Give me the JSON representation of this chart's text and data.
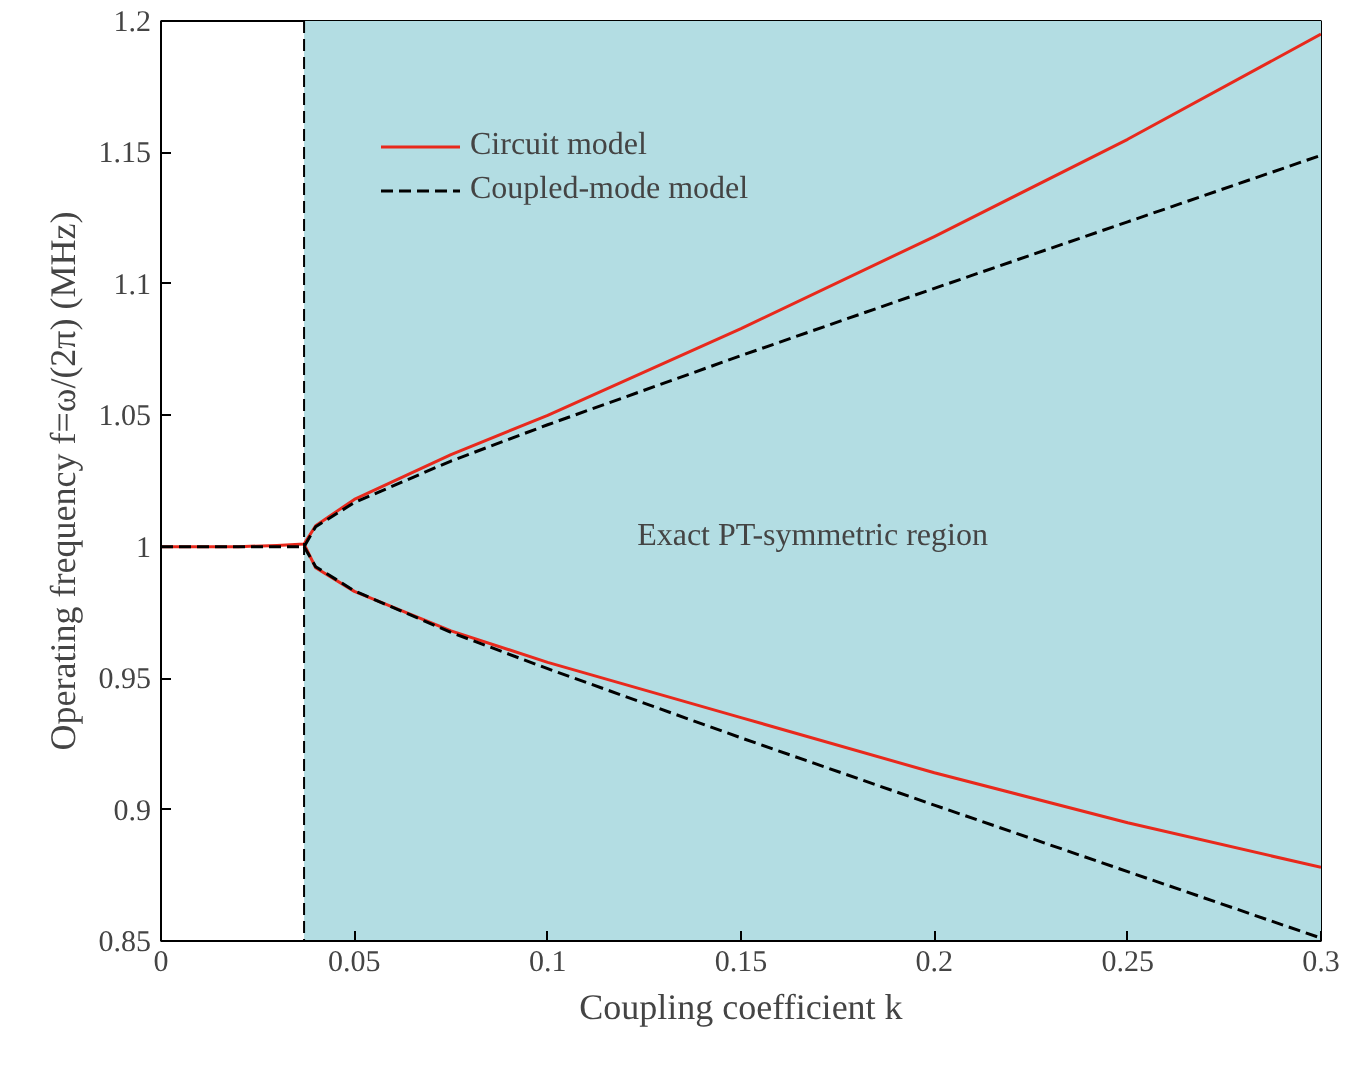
{
  "chart_data": {
    "type": "line",
    "xlabel": "Coupling coefficient k",
    "ylabel": "Operating frequency f=ω/(2π) (MHz)",
    "xlim": [
      0,
      0.3
    ],
    "ylim": [
      0.85,
      1.2
    ],
    "xticks": [
      0,
      0.05,
      0.1,
      0.15,
      0.2,
      0.25,
      0.3
    ],
    "yticks": [
      0.85,
      0.9,
      0.95,
      1,
      1.05,
      1.1,
      1.15,
      1.2
    ],
    "grid": false,
    "legend": "top left",
    "bands": [
      {
        "axis": "x",
        "from": 0.037,
        "to": 0.3,
        "label": "Exact PT-symmetric region",
        "color": "#b3dde3"
      }
    ],
    "ref_lines": [
      {
        "axis": "x",
        "value": 0.037,
        "color": "#000000",
        "line_style": "dashed"
      }
    ],
    "series": [
      {
        "name": "Circuit model",
        "color": "#e8291c",
        "line_style": "solid",
        "x": [
          0,
          0.01,
          0.02,
          0.03,
          0.037,
          0.04,
          0.05,
          0.075,
          0.1,
          0.15,
          0.2,
          0.25,
          0.3
        ],
        "values": [
          1,
          1,
          1,
          1.0005,
          1.001,
          1.008,
          1.018,
          1.035,
          1.05,
          1.083,
          1.118,
          1.155,
          1.195
        ]
      },
      {
        "color": "#e8291c",
        "line_style": "solid",
        "x": [
          0.037,
          0.04,
          0.05,
          0.075,
          0.1,
          0.15,
          0.2,
          0.25,
          0.3
        ],
        "values": [
          1.001,
          0.992,
          0.983,
          0.968,
          0.956,
          0.935,
          0.914,
          0.895,
          0.878
        ]
      },
      {
        "name": "Coupled-mode model",
        "color": "#000000",
        "line_style": "dashed",
        "x": [
          0,
          0.01,
          0.02,
          0.03,
          0.037,
          0.04,
          0.05,
          0.075,
          0.1,
          0.15,
          0.2,
          0.25,
          0.3
        ],
        "values": [
          1,
          1,
          1,
          1,
          1,
          1.0076,
          1.0168,
          1.0326,
          1.0464,
          1.0727,
          1.0983,
          1.1236,
          1.1489
        ]
      },
      {
        "color": "#000000",
        "line_style": "dashed",
        "x": [
          0.037,
          0.04,
          0.05,
          0.075,
          0.1,
          0.15,
          0.2,
          0.25,
          0.3
        ],
        "values": [
          1,
          0.9924,
          0.9832,
          0.9674,
          0.9536,
          0.9273,
          0.9017,
          0.8764,
          0.8511
        ]
      }
    ]
  }
}
